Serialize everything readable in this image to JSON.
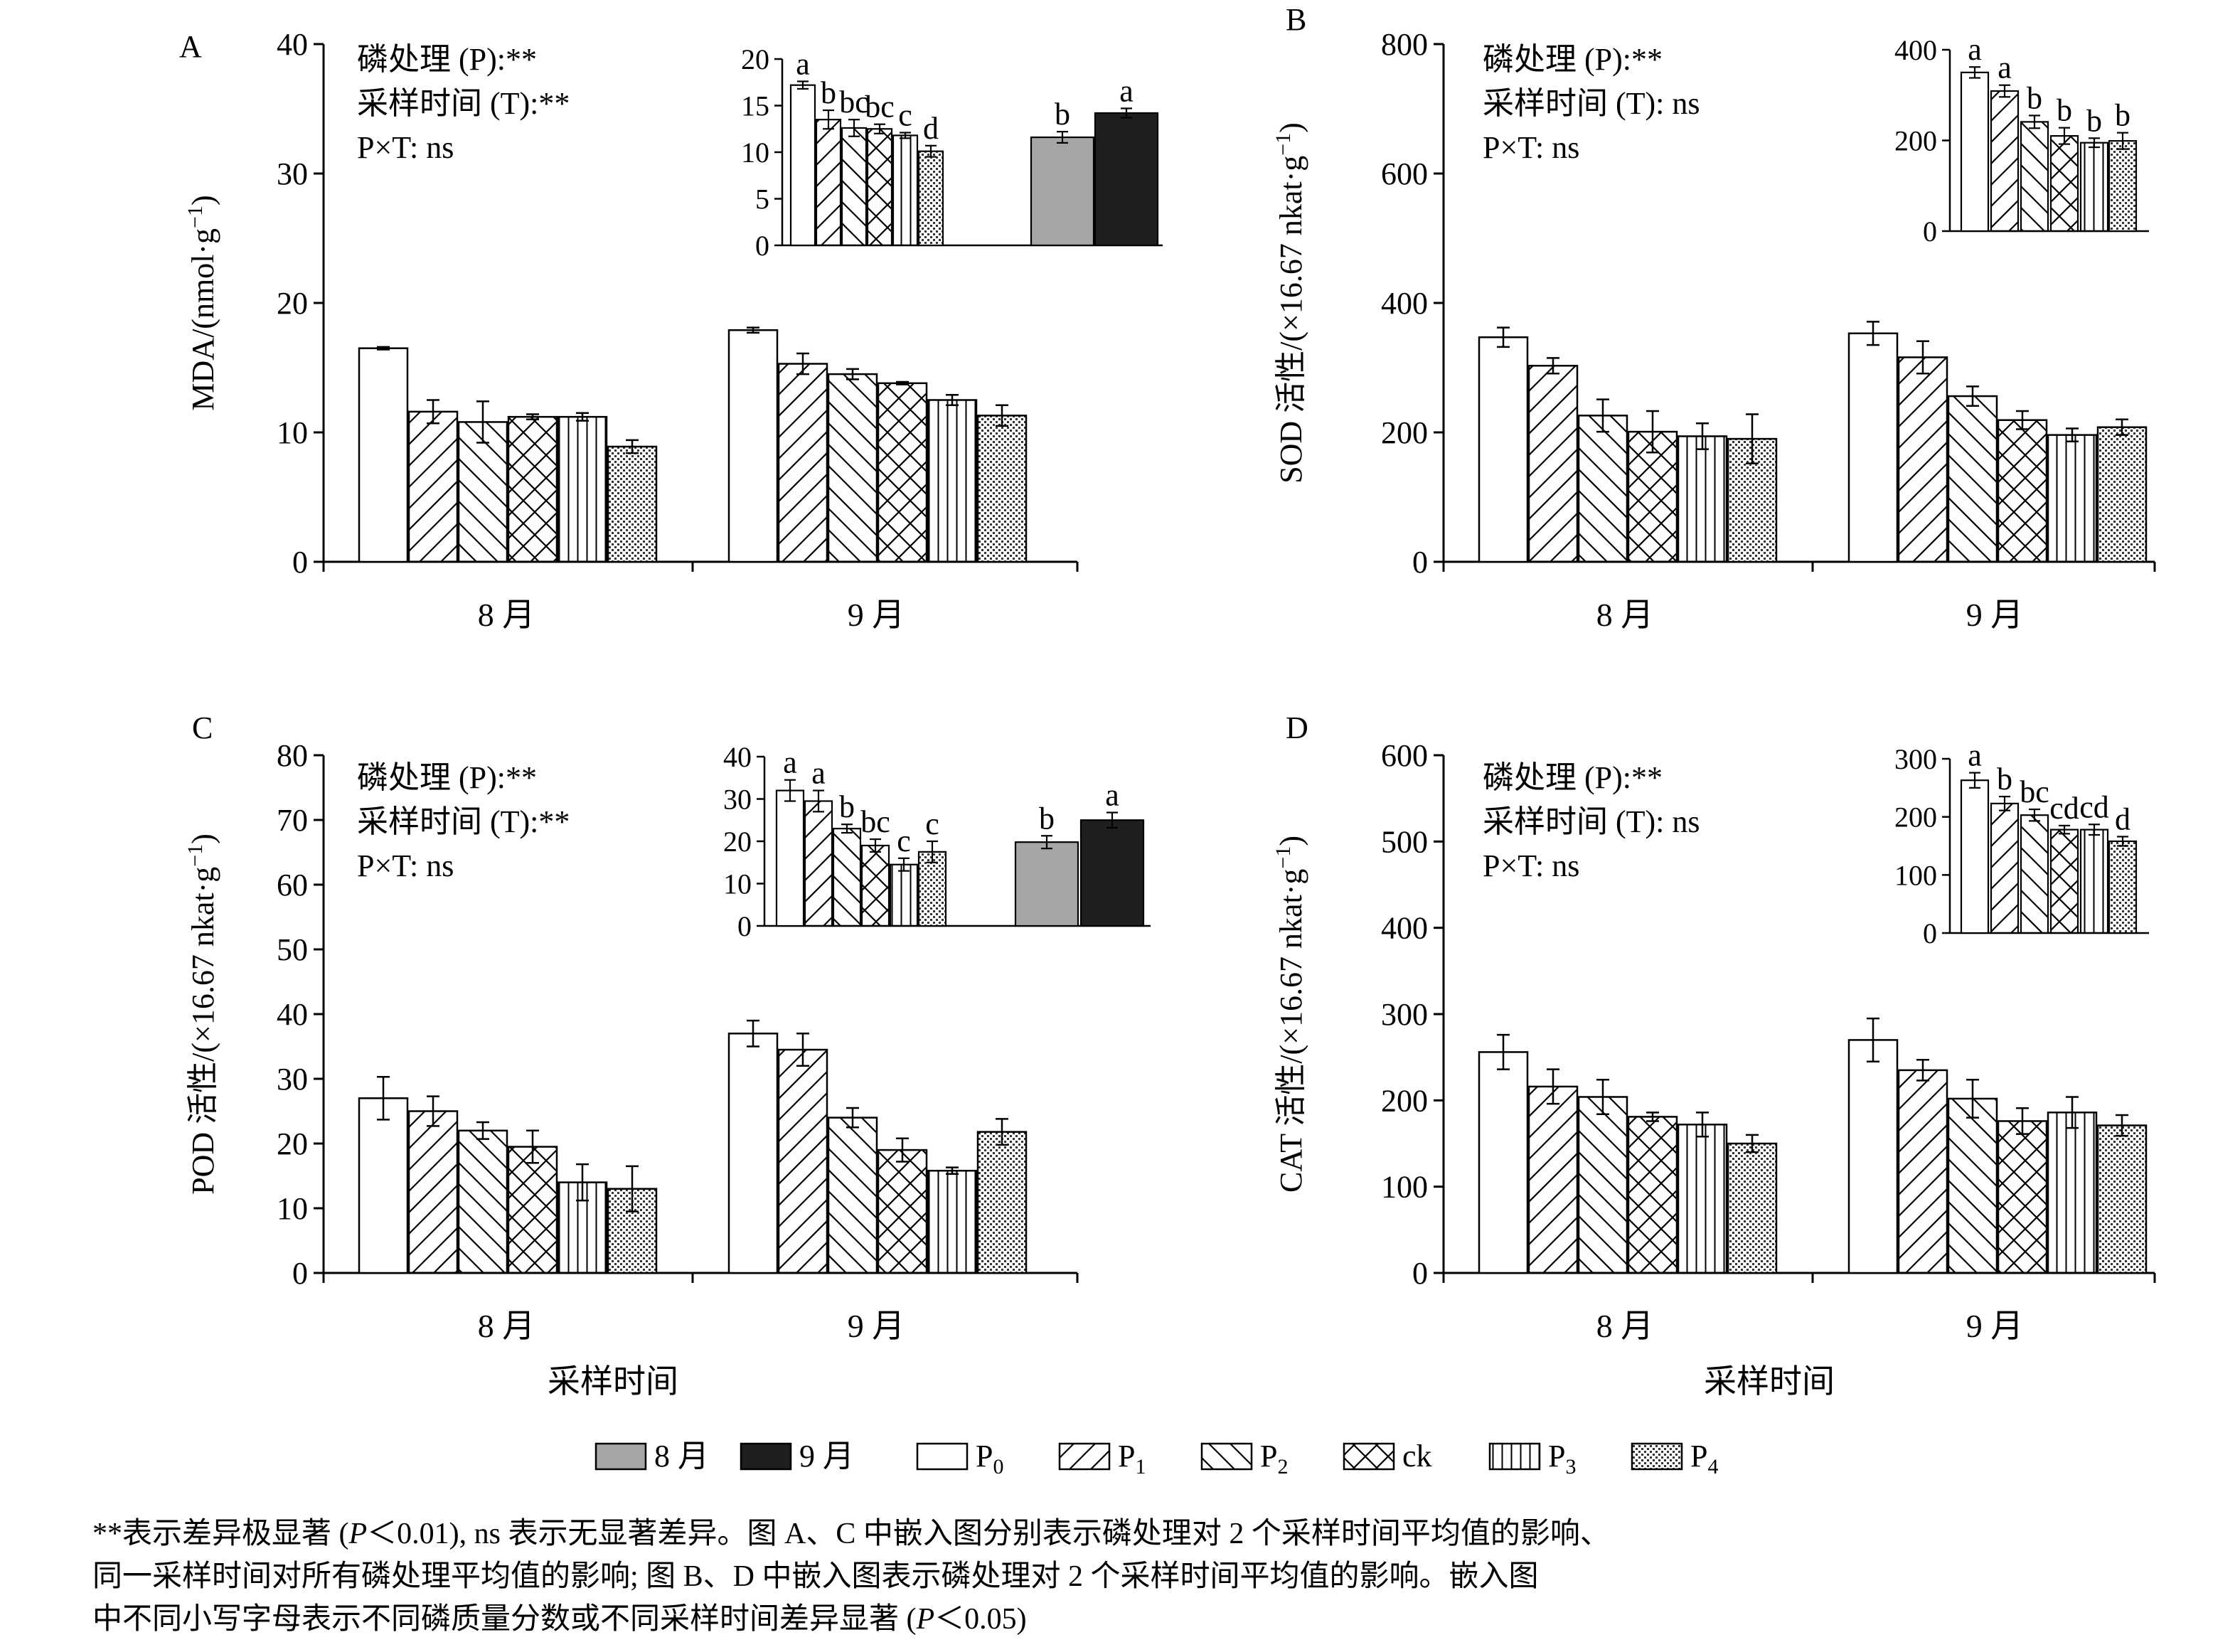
{
  "chart_data": [
    {
      "panel": "A",
      "type": "bar",
      "ylabel": "MDA/(nmol·g⁻¹)",
      "ylim": [
        0,
        40
      ],
      "yticks": [
        0,
        10,
        20,
        30,
        40
      ],
      "categories": [
        "8 月",
        "9 月"
      ],
      "series": [
        {
          "name": "P0",
          "values": [
            16.5,
            17.9
          ],
          "errors": [
            0.1,
            0.2
          ]
        },
        {
          "name": "P1",
          "values": [
            11.6,
            15.3
          ],
          "errors": [
            0.9,
            0.8
          ]
        },
        {
          "name": "P2",
          "values": [
            10.8,
            14.5
          ],
          "errors": [
            1.6,
            0.4
          ]
        },
        {
          "name": "ck",
          "values": [
            11.2,
            13.8
          ],
          "errors": [
            0.2,
            0.1
          ]
        },
        {
          "name": "P3",
          "values": [
            11.2,
            12.5
          ],
          "errors": [
            0.3,
            0.4
          ]
        },
        {
          "name": "P4",
          "values": [
            8.9,
            11.3
          ],
          "errors": [
            0.5,
            0.8
          ]
        }
      ],
      "stats": [
        "磷处理 (P):**",
        "采样时间 (T):**",
        "P×T: ns"
      ],
      "inset": {
        "ylim": [
          0,
          20
        ],
        "yticks": [
          0,
          5,
          10,
          15,
          20
        ],
        "groups": [
          {
            "kind": "phosphorus",
            "series": [
              "P0",
              "P1",
              "P2",
              "ck",
              "P3",
              "P4"
            ],
            "values": [
              17.2,
              13.5,
              12.6,
              12.5,
              11.8,
              10.1
            ],
            "errors": [
              0.4,
              1.0,
              0.9,
              0.5,
              0.3,
              0.6
            ],
            "letters": [
              "a",
              "b",
              "bc",
              "bc",
              "c",
              "d"
            ]
          },
          {
            "kind": "month",
            "series": [
              "8月",
              "9月"
            ],
            "values": [
              11.6,
              14.2
            ],
            "errors": [
              0.6,
              0.5
            ],
            "letters": [
              "b",
              "a"
            ]
          }
        ]
      }
    },
    {
      "panel": "B",
      "type": "bar",
      "ylabel": "SOD 活性/(×16.67 nkat·g⁻¹)",
      "ylim": [
        0,
        800
      ],
      "yticks": [
        0,
        200,
        400,
        600,
        800
      ],
      "categories": [
        "8 月",
        "9 月"
      ],
      "series": [
        {
          "name": "P0",
          "values": [
            347,
            353
          ],
          "errors": [
            15,
            18
          ]
        },
        {
          "name": "P1",
          "values": [
            303,
            316
          ],
          "errors": [
            12,
            25
          ]
        },
        {
          "name": "P2",
          "values": [
            226,
            256
          ],
          "errors": [
            25,
            15
          ]
        },
        {
          "name": "ck",
          "values": [
            201,
            219
          ],
          "errors": [
            32,
            14
          ]
        },
        {
          "name": "P3",
          "values": [
            194,
            196
          ],
          "errors": [
            20,
            10
          ]
        },
        {
          "name": "P4",
          "values": [
            190,
            208
          ],
          "errors": [
            38,
            12
          ]
        }
      ],
      "stats": [
        "磷处理 (P):**",
        "采样时间 (T): ns",
        "P×T: ns"
      ],
      "inset": {
        "ylim": [
          0,
          400
        ],
        "yticks": [
          0,
          200,
          400
        ],
        "groups": [
          {
            "kind": "phosphorus",
            "series": [
              "P0",
              "P1",
              "P2",
              "ck",
              "P3",
              "P4"
            ],
            "values": [
              350,
              309,
              241,
              210,
              195,
              199
            ],
            "errors": [
              12,
              13,
              14,
              18,
              10,
              18
            ],
            "letters": [
              "a",
              "a",
              "b",
              "b",
              "b",
              "b"
            ]
          }
        ]
      }
    },
    {
      "panel": "C",
      "type": "bar",
      "ylabel": "POD 活性/(×16.67 nkat·g⁻¹)",
      "ylim": [
        0,
        80
      ],
      "yticks": [
        0,
        10,
        20,
        30,
        40,
        50,
        60,
        70,
        80
      ],
      "categories": [
        "8 月",
        "9 月"
      ],
      "series": [
        {
          "name": "P0",
          "values": [
            27,
            37
          ],
          "errors": [
            3.3,
            2.0
          ]
        },
        {
          "name": "P1",
          "values": [
            25,
            34.5
          ],
          "errors": [
            2.3,
            2.5
          ]
        },
        {
          "name": "P2",
          "values": [
            22,
            24
          ],
          "errors": [
            1.3,
            1.5
          ]
        },
        {
          "name": "ck",
          "values": [
            19.5,
            19
          ],
          "errors": [
            2.5,
            1.8
          ]
        },
        {
          "name": "P3",
          "values": [
            14,
            15.8
          ],
          "errors": [
            2.8,
            0.5
          ]
        },
        {
          "name": "P4",
          "values": [
            13,
            21.8
          ],
          "errors": [
            3.5,
            2.0
          ]
        }
      ],
      "stats": [
        "磷处理 (P):**",
        "采样时间 (T):**",
        "P×T: ns"
      ],
      "inset": {
        "ylim": [
          0,
          40
        ],
        "yticks": [
          0,
          10,
          20,
          30,
          40
        ],
        "groups": [
          {
            "kind": "phosphorus",
            "series": [
              "P0",
              "P1",
              "P2",
              "ck",
              "P3",
              "P4"
            ],
            "values": [
              32,
              29.5,
              23,
              19,
              14.5,
              17.5
            ],
            "errors": [
              2.5,
              2.5,
              1.0,
              1.5,
              1.5,
              2.5
            ],
            "letters": [
              "a",
              "a",
              "b",
              "bc",
              "c",
              "c"
            ]
          },
          {
            "kind": "month",
            "series": [
              "8月",
              "9月"
            ],
            "values": [
              19.8,
              25
            ],
            "errors": [
              1.5,
              1.8
            ],
            "letters": [
              "b",
              "a"
            ]
          }
        ]
      }
    },
    {
      "panel": "D",
      "type": "bar",
      "ylabel": "CAT 活性/(×16.67 nkat·g⁻¹)",
      "ylim": [
        0,
        600
      ],
      "yticks": [
        0,
        100,
        200,
        300,
        400,
        500,
        600
      ],
      "categories": [
        "8 月",
        "9 月"
      ],
      "series": [
        {
          "name": "P0",
          "values": [
            256,
            270
          ],
          "errors": [
            20,
            25
          ]
        },
        {
          "name": "P1",
          "values": [
            216,
            235
          ],
          "errors": [
            20,
            12
          ]
        },
        {
          "name": "P2",
          "values": [
            204,
            202
          ],
          "errors": [
            20,
            22
          ]
        },
        {
          "name": "ck",
          "values": [
            181,
            176
          ],
          "errors": [
            5,
            15
          ]
        },
        {
          "name": "P3",
          "values": [
            172,
            186
          ],
          "errors": [
            14,
            18
          ]
        },
        {
          "name": "P4",
          "values": [
            150,
            171
          ],
          "errors": [
            10,
            12
          ]
        }
      ],
      "stats": [
        "磷处理 (P):**",
        "采样时间 (T): ns",
        "P×T: ns"
      ],
      "inset": {
        "ylim": [
          0,
          300
        ],
        "yticks": [
          0,
          100,
          200,
          300
        ],
        "groups": [
          {
            "kind": "phosphorus",
            "series": [
              "P0",
              "P1",
              "P2",
              "ck",
              "P3",
              "P4"
            ],
            "values": [
              263,
              223,
              203,
              178,
              178,
              158
            ],
            "errors": [
              13,
              12,
              10,
              7,
              9,
              8
            ],
            "letters": [
              "a",
              "b",
              "bc",
              "cd",
              "cd",
              "d"
            ]
          }
        ]
      }
    }
  ],
  "xaxis_title": "采样时间",
  "legend": [
    {
      "key": "m8",
      "label": "8 月"
    },
    {
      "key": "m9",
      "label": "9 月"
    },
    {
      "key": "P0",
      "label": "P",
      "sub": "0"
    },
    {
      "key": "P1",
      "label": "P",
      "sub": "1"
    },
    {
      "key": "P2",
      "label": "P",
      "sub": "2"
    },
    {
      "key": "ck",
      "label": "ck"
    },
    {
      "key": "P3",
      "label": "P",
      "sub": "3"
    },
    {
      "key": "P4",
      "label": "P",
      "sub": "4"
    }
  ],
  "caption": [
    {
      "parts": [
        {
          "t": "**表示差异极显著 ("
        },
        {
          "t": "P",
          "i": true
        },
        {
          "t": "＜0.01), ns 表示无显著差异。图 A、C 中嵌入图分别表示磷处理对 2 个采样时间平均值的影响、"
        }
      ]
    },
    {
      "parts": [
        {
          "t": "同一采样时间对所有磷处理平均值的影响; 图 B、D 中嵌入图表示磷处理对 2 个采样时间平均值的影响。嵌入图"
        }
      ]
    },
    {
      "parts": [
        {
          "t": "中不同小写字母表示不同磷质量分数或不同采样时间差异显著 ("
        },
        {
          "t": "P",
          "i": true
        },
        {
          "t": "＜0.05)"
        }
      ]
    }
  ],
  "colors": {
    "bar_fill": "#ffffff",
    "month8": "#a6a6a6",
    "month9": "#1f1f1f",
    "ink": "#000000"
  }
}
